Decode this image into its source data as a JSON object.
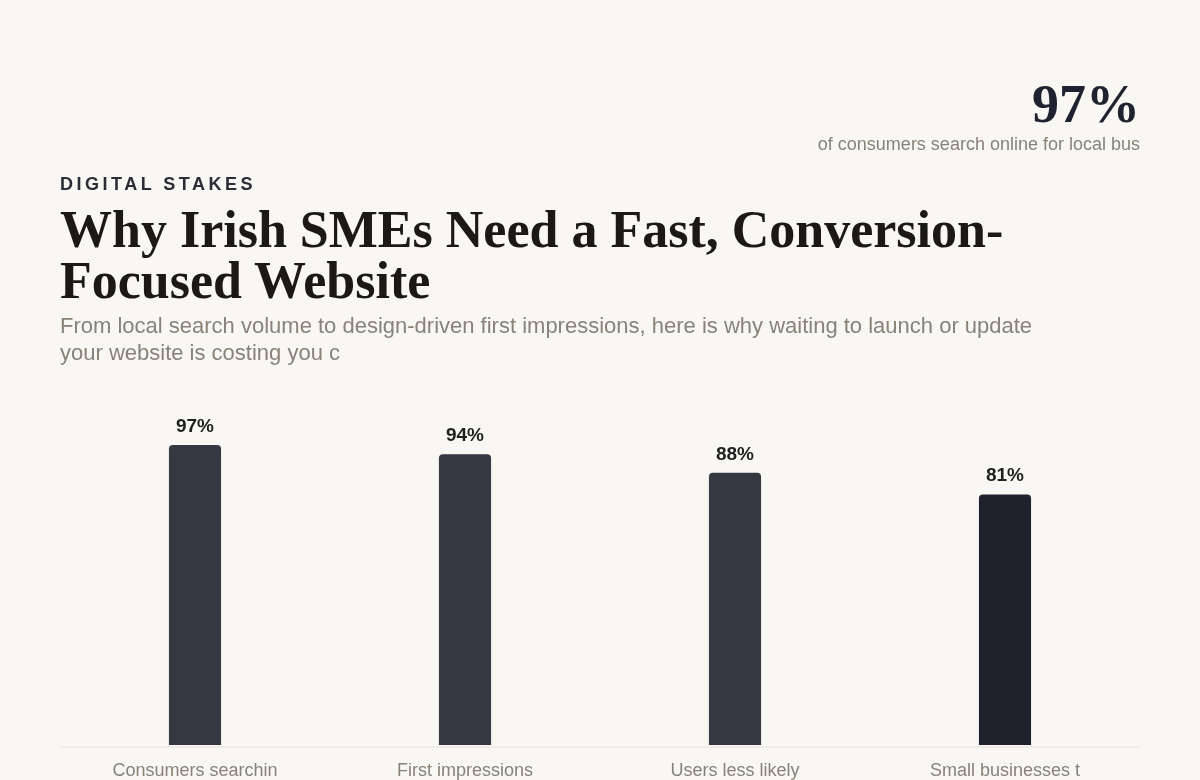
{
  "chart_data": {
    "type": "bar",
    "title": "Why Irish SMEs Need a Fast, Conversion-Focused Website",
    "subtitle": "From local search volume to design-driven first impressions, here is why waiting to launch or update your website is costing you c",
    "annotations": [
      "DIGITAL STAKES",
      "97%",
      "of consumers search online for local bus"
    ],
    "categories": [
      "Consumers searchin",
      "First impressions",
      "Users less likely",
      "Small businesses t"
    ],
    "values": [
      97,
      94,
      88,
      81
    ],
    "value_labels": [
      "97%",
      "94%",
      "88%",
      "81%"
    ],
    "colors": [
      "#353741",
      "#353741",
      "#353741",
      "#1f222c"
    ]
  }
}
